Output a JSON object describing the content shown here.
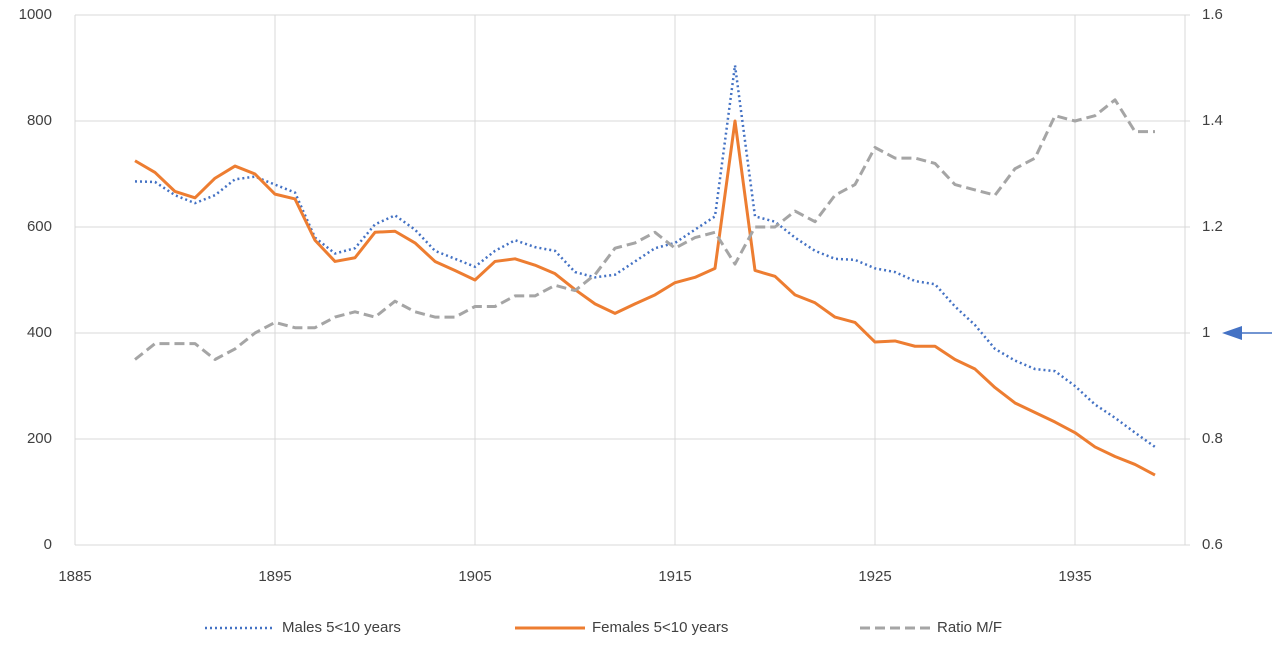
{
  "chart_data": {
    "type": "line",
    "x": [
      1888,
      1889,
      1890,
      1891,
      1892,
      1893,
      1894,
      1895,
      1896,
      1897,
      1898,
      1899,
      1900,
      1901,
      1902,
      1903,
      1904,
      1905,
      1906,
      1907,
      1908,
      1909,
      1910,
      1911,
      1912,
      1913,
      1914,
      1915,
      1916,
      1917,
      1918,
      1919,
      1920,
      1921,
      1922,
      1923,
      1924,
      1925,
      1926,
      1927,
      1928,
      1929,
      1930,
      1931,
      1932,
      1933,
      1934,
      1935,
      1936,
      1937,
      1938,
      1939
    ],
    "series": [
      {
        "name": "Males 5<10 years",
        "color": "#4472c4",
        "dash": "dotted",
        "values": [
          686,
          685,
          660,
          645,
          660,
          690,
          695,
          680,
          665,
          580,
          550,
          560,
          605,
          622,
          595,
          555,
          540,
          525,
          555,
          575,
          562,
          555,
          515,
          505,
          510,
          535,
          560,
          570,
          595,
          620,
          905,
          620,
          610,
          580,
          555,
          540,
          538,
          522,
          515,
          498,
          492,
          450,
          415,
          370,
          348,
          332,
          328,
          300,
          265,
          240,
          212,
          185
        ]
      },
      {
        "name": "Females 5<10 years",
        "color": "#ed7d31",
        "dash": "solid",
        "values": [
          725,
          703,
          667,
          655,
          692,
          715,
          700,
          662,
          653,
          575,
          535,
          542,
          590,
          592,
          570,
          535,
          518,
          500,
          535,
          540,
          528,
          512,
          482,
          455,
          437,
          455,
          472,
          495,
          505,
          522,
          800,
          518,
          507,
          472,
          457,
          430,
          420,
          383,
          385,
          375,
          375,
          350,
          332,
          297,
          268,
          250,
          232,
          212,
          185,
          167,
          152,
          132
        ]
      },
      {
        "name": "Ratio M/F",
        "color": "#a5a5a5",
        "dash": "dashed",
        "axis": "y2",
        "values": [
          0.95,
          0.98,
          0.98,
          0.98,
          0.95,
          0.97,
          1.0,
          1.02,
          1.01,
          1.01,
          1.03,
          1.04,
          1.03,
          1.06,
          1.04,
          1.03,
          1.03,
          1.05,
          1.05,
          1.07,
          1.07,
          1.09,
          1.08,
          1.11,
          1.16,
          1.17,
          1.19,
          1.16,
          1.18,
          1.19,
          1.13,
          1.2,
          1.2,
          1.23,
          1.21,
          1.26,
          1.28,
          1.35,
          1.33,
          1.33,
          1.32,
          1.28,
          1.27,
          1.26,
          1.31,
          1.33,
          1.41,
          1.4,
          1.41,
          1.44,
          1.38,
          1.38
        ]
      }
    ],
    "xlim": [
      1885,
      1940.5
    ],
    "xticks": [
      1885,
      1895,
      1905,
      1915,
      1925,
      1935
    ],
    "ylim": [
      0,
      1000
    ],
    "yticks": [
      0,
      200,
      400,
      600,
      800,
      1000
    ],
    "y2lim": [
      0.6,
      1.6
    ],
    "y2ticks": [
      0.6,
      0.8,
      1,
      1.2,
      1.4,
      1.6
    ],
    "grid": true,
    "legend": "bottom"
  }
}
